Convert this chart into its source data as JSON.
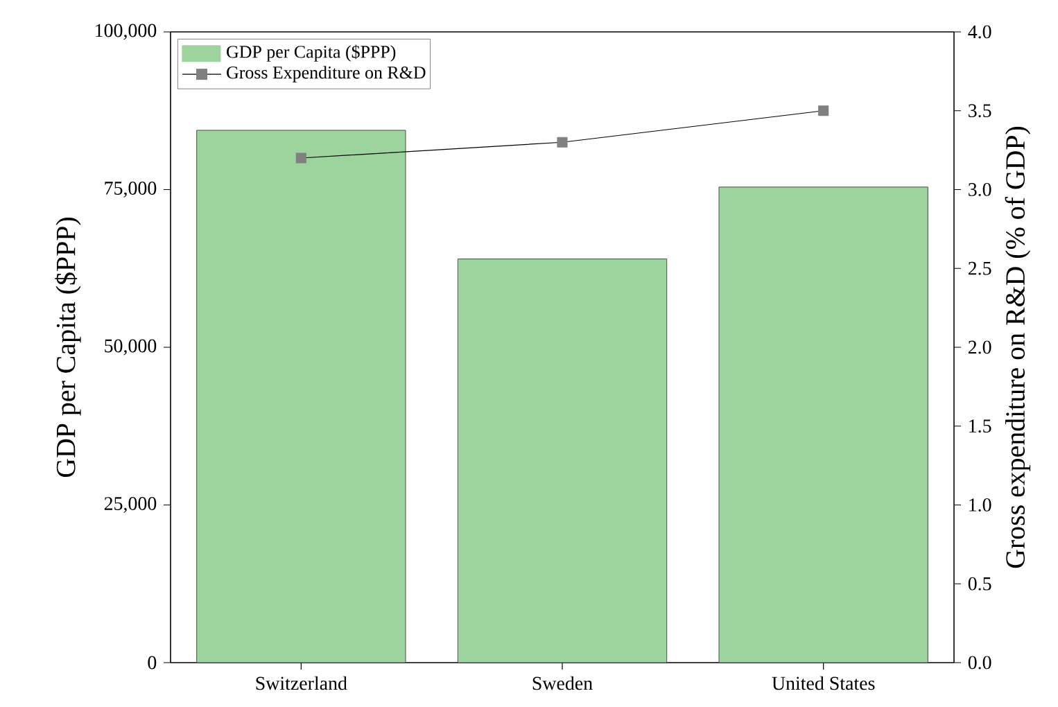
{
  "chart_data": {
    "type": "bar",
    "categories": [
      "Switzerland",
      "Sweden",
      "United States"
    ],
    "ylabel": "GDP per Capita ($PPP)",
    "y2label": "Gross expenditure on R&D (% of GDP)",
    "series": [
      {
        "name": "GDP per Capita ($PPP)",
        "color": "#9dd49d",
        "values": [
          84400,
          64000,
          75400
        ]
      },
      {
        "name": "Gross Expenditure on R&D",
        "type": "line",
        "axis": "y2",
        "color": "#808080",
        "marker": "square",
        "values": [
          3.2,
          3.3,
          3.5
        ]
      }
    ],
    "ylim": [
      0,
      100000
    ],
    "yticks": [
      0,
      {
        "value": 25000,
        "label": "25,000"
      },
      {
        "value": 50000,
        "label": "50,000"
      },
      {
        "value": 75000,
        "label": "75,000"
      },
      {
        "value": 100000,
        "label": "100,000"
      }
    ],
    "y2lim": [
      0,
      4
    ],
    "y2ticks": [
      {
        "value": 0,
        "label": "0.0"
      },
      {
        "value": 0.5,
        "label": "0.5"
      },
      {
        "value": 1,
        "label": "1.0"
      },
      {
        "value": 1.5,
        "label": "1.5"
      },
      {
        "value": 2,
        "label": "2.0"
      },
      {
        "value": 2.5,
        "label": "2.5"
      },
      {
        "value": 3,
        "label": "3.0"
      },
      {
        "value": 3.5,
        "label": "3.5"
      },
      {
        "value": 4,
        "label": "4.0"
      }
    ],
    "legend": "top left",
    "grid": false
  }
}
